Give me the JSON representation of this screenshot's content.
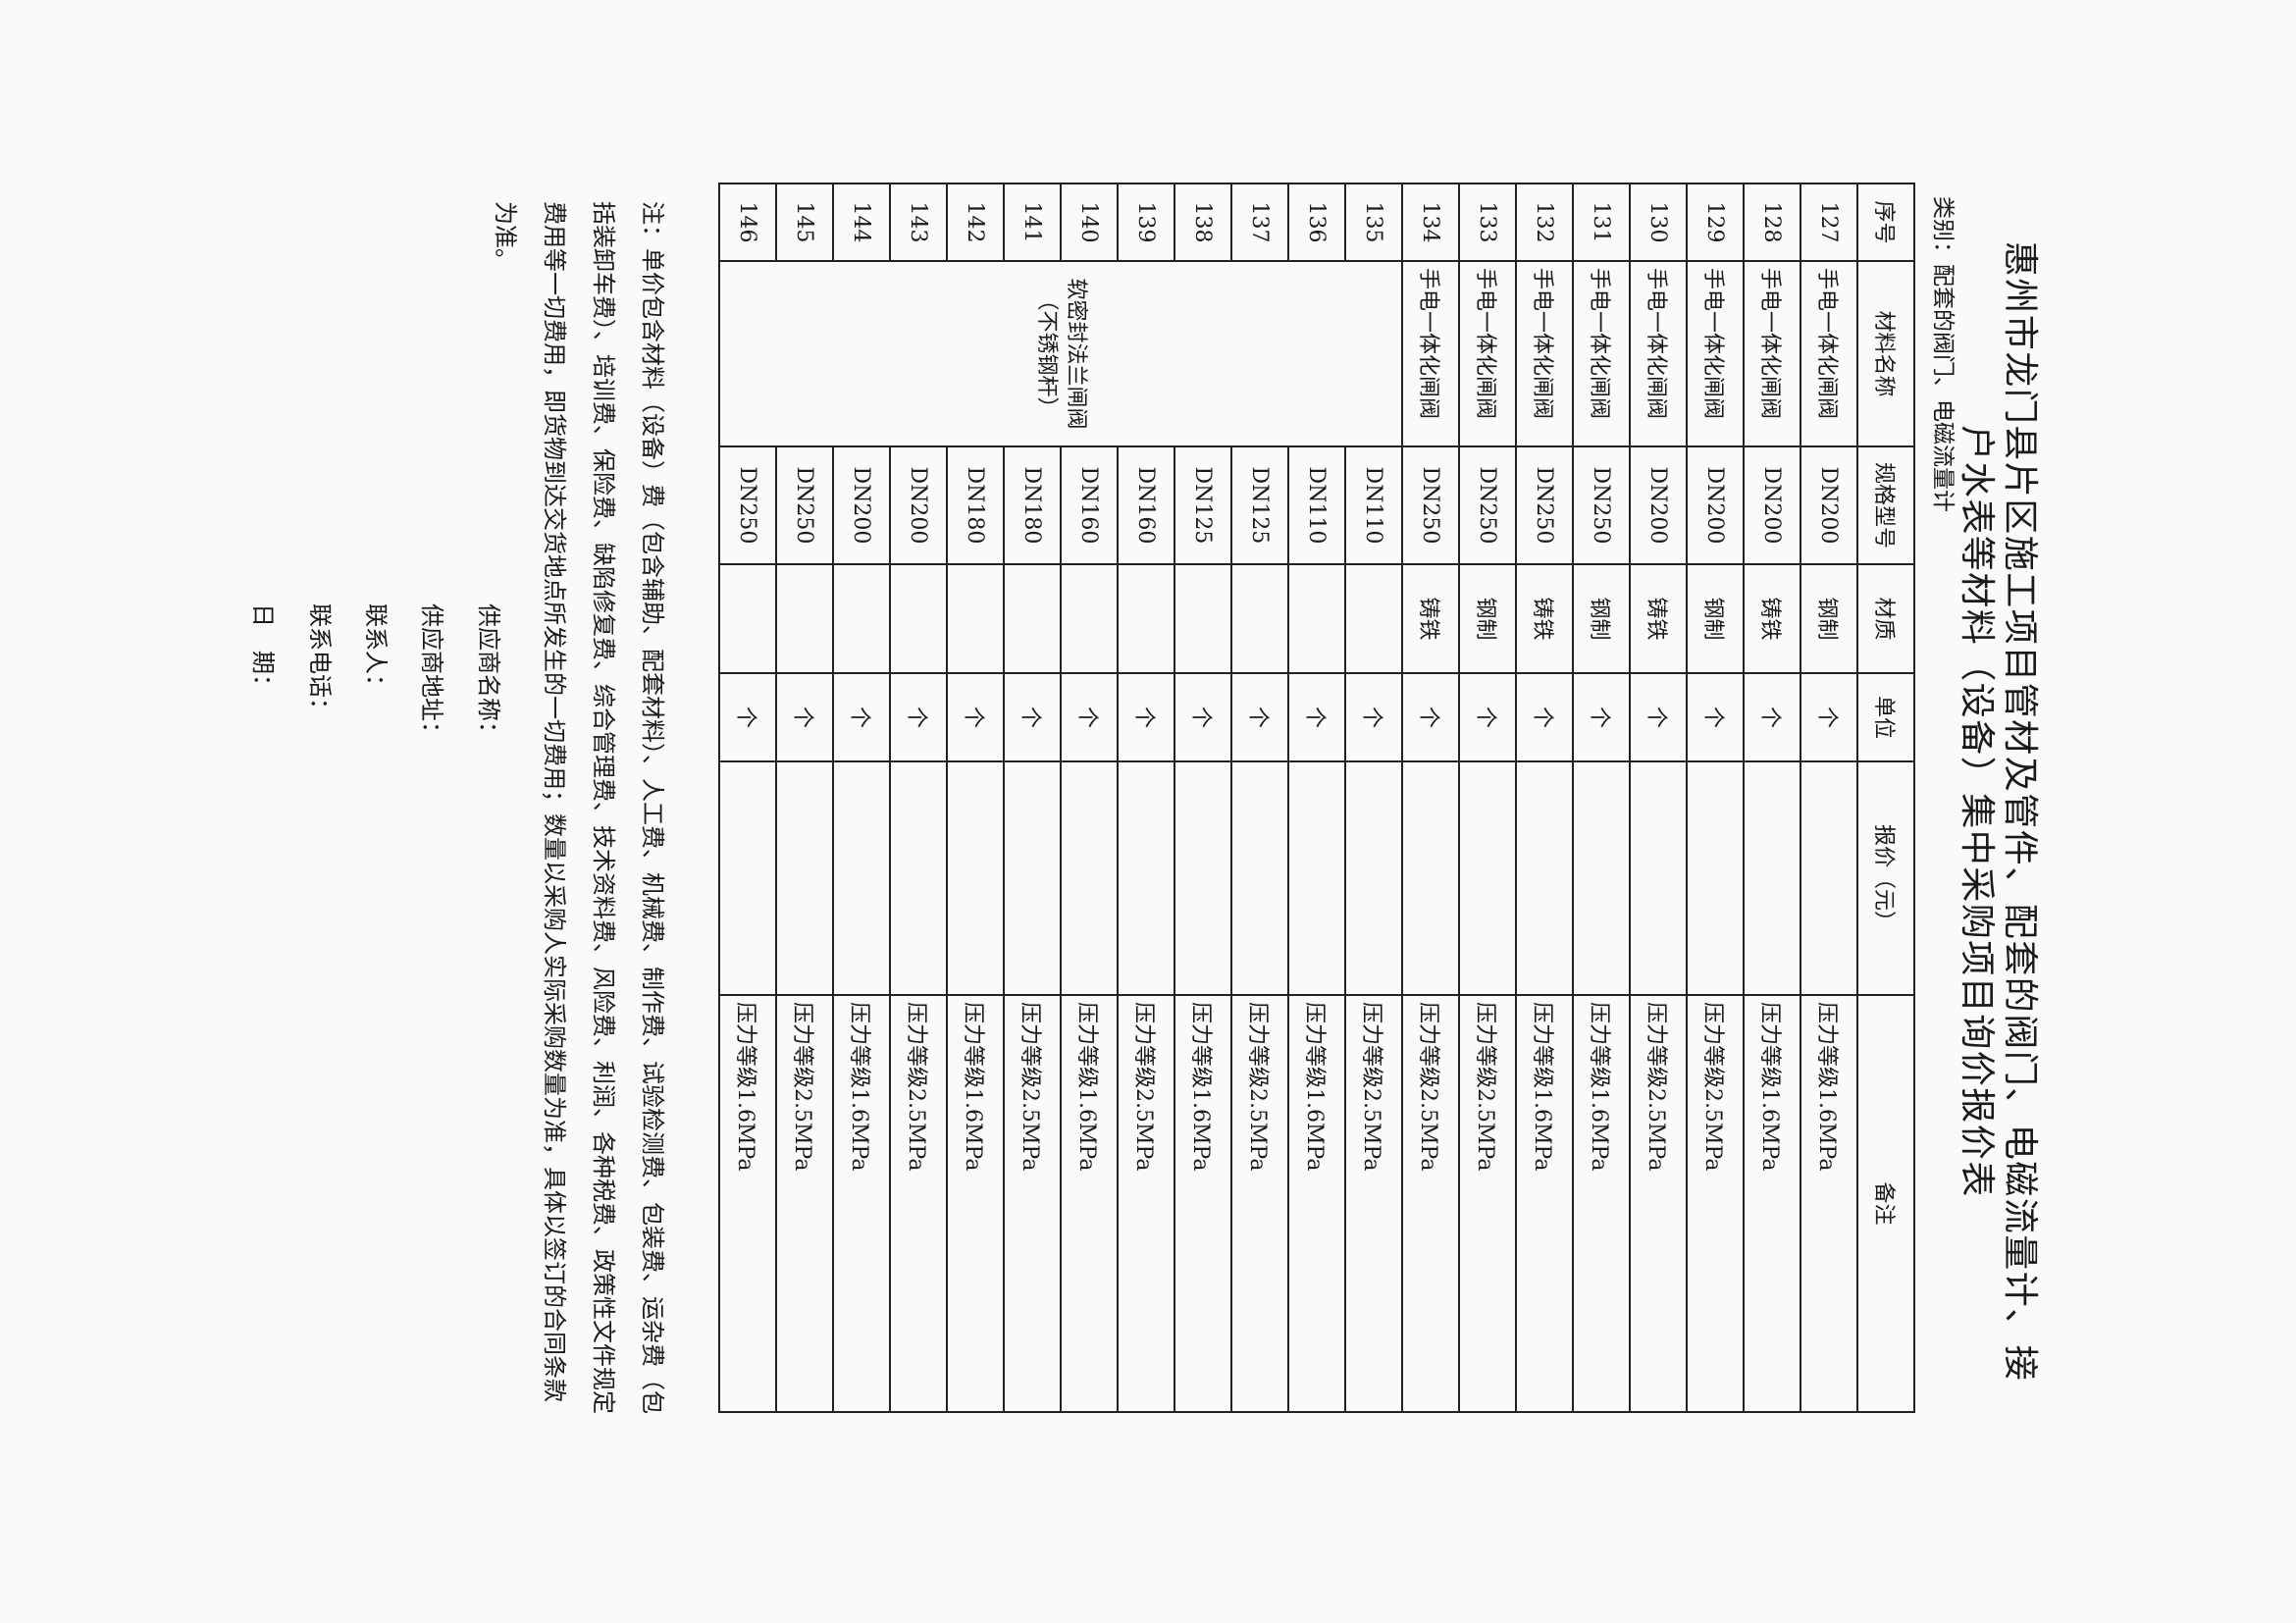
{
  "title": {
    "line1": "惠州市龙门县片区施工项目管材及管件、配套的阀门、电磁流量计、接",
    "line2": "户水表等材料（设备）集中采购项目询价报价表"
  },
  "category": "类别：配套的阀门、电磁流量计",
  "headers": [
    "序号",
    "材料名称",
    "规格型号",
    "材质",
    "单位",
    "报价（元）",
    "备注"
  ],
  "merged_name": {
    "line1": "软密封法兰闸阀",
    "line2": "（不锈钢杆）"
  },
  "rows": [
    {
      "no": "127",
      "name": "手电一体化闸阀",
      "spec": "DN200",
      "material": "钢制",
      "unit": "个",
      "price": "",
      "remark": "压力等级1.6MPa"
    },
    {
      "no": "128",
      "name": "手电一体化闸阀",
      "spec": "DN200",
      "material": "铸铁",
      "unit": "个",
      "price": "",
      "remark": "压力等级1.6MPa"
    },
    {
      "no": "129",
      "name": "手电一体化闸阀",
      "spec": "DN200",
      "material": "钢制",
      "unit": "个",
      "price": "",
      "remark": "压力等级2.5MPa"
    },
    {
      "no": "130",
      "name": "手电一体化闸阀",
      "spec": "DN200",
      "material": "铸铁",
      "unit": "个",
      "price": "",
      "remark": "压力等级2.5MPa"
    },
    {
      "no": "131",
      "name": "手电一体化闸阀",
      "spec": "DN250",
      "material": "钢制",
      "unit": "个",
      "price": "",
      "remark": "压力等级1.6MPa"
    },
    {
      "no": "132",
      "name": "手电一体化闸阀",
      "spec": "DN250",
      "material": "铸铁",
      "unit": "个",
      "price": "",
      "remark": "压力等级1.6MPa"
    },
    {
      "no": "133",
      "name": "手电一体化闸阀",
      "spec": "DN250",
      "material": "钢制",
      "unit": "个",
      "price": "",
      "remark": "压力等级2.5MPa"
    },
    {
      "no": "134",
      "name": "手电一体化闸阀",
      "spec": "DN250",
      "material": "铸铁",
      "unit": "个",
      "price": "",
      "remark": "压力等级2.5MPa"
    },
    {
      "no": "135",
      "spec": "DN110",
      "material": "",
      "unit": "个",
      "price": "",
      "remark": "压力等级2.5MPa"
    },
    {
      "no": "136",
      "spec": "DN110",
      "material": "",
      "unit": "个",
      "price": "",
      "remark": "压力等级1.6MPa"
    },
    {
      "no": "137",
      "spec": "DN125",
      "material": "",
      "unit": "个",
      "price": "",
      "remark": "压力等级2.5MPa"
    },
    {
      "no": "138",
      "spec": "DN125",
      "material": "",
      "unit": "个",
      "price": "",
      "remark": "压力等级1.6MPa"
    },
    {
      "no": "139",
      "spec": "DN160",
      "material": "",
      "unit": "个",
      "price": "",
      "remark": "压力等级2.5MPa"
    },
    {
      "no": "140",
      "spec": "DN160",
      "material": "",
      "unit": "个",
      "price": "",
      "remark": "压力等级1.6MPa"
    },
    {
      "no": "141",
      "spec": "DN180",
      "material": "",
      "unit": "个",
      "price": "",
      "remark": "压力等级2.5MPa"
    },
    {
      "no": "142",
      "spec": "DN180",
      "material": "",
      "unit": "个",
      "price": "",
      "remark": "压力等级1.6MPa"
    },
    {
      "no": "143",
      "spec": "DN200",
      "material": "",
      "unit": "个",
      "price": "",
      "remark": "压力等级2.5MPa"
    },
    {
      "no": "144",
      "spec": "DN200",
      "material": "",
      "unit": "个",
      "price": "",
      "remark": "压力等级1.6MPa"
    },
    {
      "no": "145",
      "spec": "DN250",
      "material": "",
      "unit": "个",
      "price": "",
      "remark": "压力等级2.5MPa"
    },
    {
      "no": "146",
      "spec": "DN250",
      "material": "",
      "unit": "个",
      "price": "",
      "remark": "压力等级1.6MPa"
    }
  ],
  "notes": "注：单价包含材料（设备）费（包含辅助、配套材料）、人工费、机械费、制作费、试验检测费、包装费、运杂费（包括装卸车费）、培训费、保险费、缺陷修复费、综合管理费、技术资料费、风险费、利润、各种税费、政策性文件规定费用等一切费用，即货物到达交货地点所发生的一切费用；数量以采购人实际采购数量为准，具体以签订的合同条款为准。",
  "supplier": {
    "name_label": "供应商名称：",
    "address_label": "供应商地址：",
    "contact_label": "联系人：",
    "phone_label": "联系电话：",
    "date_label": "日　期："
  }
}
